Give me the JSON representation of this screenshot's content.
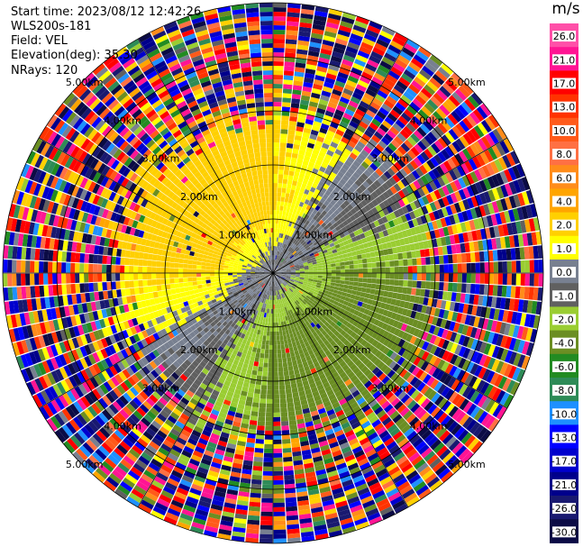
{
  "header": {
    "start_time": "Start time: 2023/08/12 12:42:26",
    "instrument": "WLS200s-181",
    "field": "Field: VEL",
    "elevation": "Elevation(deg): 35.30",
    "nrays": "NRays: 120"
  },
  "chart_data": {
    "type": "heatmap",
    "projection": "polar",
    "field": "VEL",
    "units": "m/s",
    "nrays": 120,
    "range_rings_km": [
      1,
      2,
      3,
      4,
      5
    ],
    "ring_labels": [
      "1.00km",
      "2.00km",
      "3.00km",
      "4.00km",
      "5.00km"
    ],
    "max_range_km": 5.0,
    "colorbar": {
      "title": "m/s",
      "ticks": [
        "26.0",
        "21.0",
        "17.0",
        "13.0",
        "10.0",
        "8.0",
        "6.0",
        "4.0",
        "2.0",
        "1.0",
        "0.0",
        "-1.0",
        "-2.0",
        "-4.0",
        "-6.0",
        "-8.0",
        "-10.0",
        "-13.0",
        "-17.0",
        "-21.0",
        "-26.0",
        "-30.0"
      ],
      "colors": [
        "#ff4fa8",
        "#ff1493",
        "#ff0000",
        "#ff3300",
        "#ff5a1a",
        "#ff7043",
        "#ff8c1a",
        "#ffa500",
        "#ffd000",
        "#ffff00",
        "#788090",
        "#606060",
        "#9acd32",
        "#6b8e23",
        "#228b22",
        "#2e8b57",
        "#1e90ff",
        "#0000ff",
        "#0000cd",
        "#00008b",
        "#191970",
        "#0b0b45"
      ]
    }
  }
}
